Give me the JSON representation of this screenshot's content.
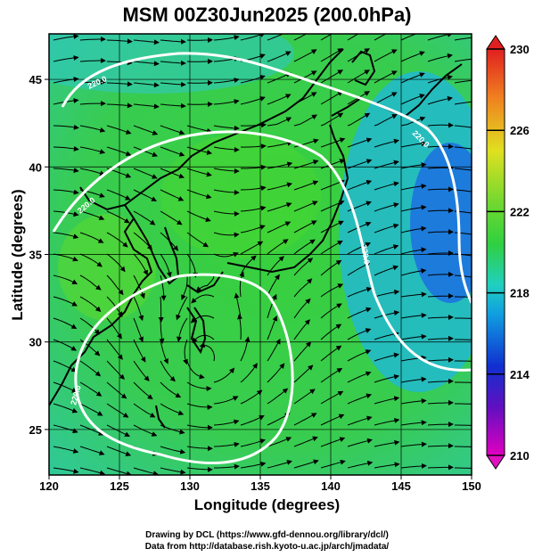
{
  "title": "MSM 00Z30Jun2025 (200.0hPa)",
  "axes": {
    "xlabel": "Longitude (degrees)",
    "ylabel": "Latitude  (degrees)",
    "xticks": [
      "120",
      "125",
      "130",
      "135",
      "140",
      "145",
      "150"
    ],
    "yticks": [
      "25",
      "30",
      "35",
      "40",
      "45"
    ],
    "xlim": [
      120,
      150
    ],
    "ylim": [
      22.4,
      47.6
    ]
  },
  "colorbar": {
    "ticks": [
      "230",
      "226",
      "222",
      "218",
      "214",
      "210"
    ],
    "range": [
      210,
      230
    ]
  },
  "contour_labels": [
    "220.0",
    "220.0",
    "220.0",
    "220.0",
    "220.0"
  ],
  "credits": {
    "line1": "Drawing by DCL (https://www.gfd-dennou.org/library/dcl/)",
    "line2": "Data from http://database.rish.kyoto-u.ac.jp/arch/jmadata/"
  },
  "colors": {
    "field_main": "#3fd23a",
    "field_low": "#20c8d8",
    "field_lowest": "#1c7ee0",
    "coast": "#000000",
    "contour": "#ffffff"
  }
}
